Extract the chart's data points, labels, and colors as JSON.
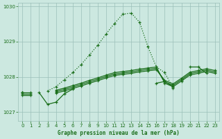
{
  "title": "Graphe pression niveau de la mer (hPa)",
  "bg_color": "#cce8e0",
  "grid_color": "#9bbfb8",
  "line_color": "#1a6e1a",
  "xlim": [
    -0.5,
    23.5
  ],
  "ylim": [
    1026.75,
    1030.1
  ],
  "yticks": [
    1027,
    1028,
    1029,
    1030
  ],
  "xticks": [
    0,
    1,
    2,
    3,
    4,
    5,
    6,
    7,
    8,
    9,
    10,
    11,
    12,
    13,
    14,
    15,
    16,
    17,
    18,
    19,
    20,
    21,
    22,
    23
  ],
  "y_peak": [
    1027.55,
    null,
    null,
    1027.6,
    1027.72,
    1027.92,
    1028.12,
    1028.35,
    1028.62,
    1028.9,
    1029.22,
    1029.52,
    1029.78,
    1029.81,
    1029.55,
    1028.85,
    1028.28,
    1028.12,
    1027.68,
    null,
    null,
    null,
    null,
    null
  ],
  "y_l1": [
    1027.55,
    null,
    1027.55,
    1027.22,
    1027.28,
    1027.52,
    1027.65,
    null,
    null,
    null,
    null,
    null,
    null,
    null,
    null,
    null,
    1027.82,
    1027.87,
    1027.72,
    null,
    1028.28,
    1028.28,
    1028.1,
    null
  ],
  "y_l2": [
    1027.55,
    1027.55,
    null,
    null,
    1027.62,
    1027.68,
    1027.75,
    1027.82,
    1027.9,
    1027.97,
    1028.05,
    1028.12,
    1028.15,
    1028.18,
    1028.22,
    1028.25,
    1028.28,
    1027.82,
    1027.72,
    1027.88,
    1028.05,
    1028.1,
    1028.15,
    1028.1
  ],
  "y_l3": [
    1027.52,
    1027.52,
    null,
    null,
    1027.58,
    1027.64,
    1027.71,
    1027.78,
    1027.86,
    1027.93,
    1028.01,
    1028.08,
    1028.11,
    1028.14,
    1028.18,
    1028.21,
    1028.24,
    1027.86,
    1027.76,
    1027.92,
    1028.09,
    1028.14,
    1028.19,
    1028.14
  ],
  "y_l4": [
    1027.48,
    1027.48,
    null,
    null,
    1027.54,
    1027.6,
    1027.67,
    1027.74,
    1027.82,
    1027.89,
    1027.97,
    1028.04,
    1028.07,
    1028.1,
    1028.14,
    1028.17,
    1028.2,
    1027.9,
    1027.8,
    1027.96,
    1028.13,
    1028.18,
    1028.23,
    1028.18
  ]
}
